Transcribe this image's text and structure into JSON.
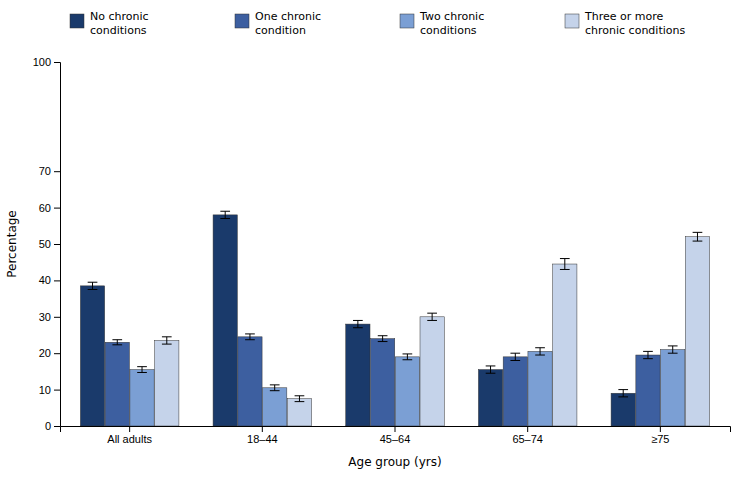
{
  "chart_data": {
    "type": "bar",
    "categories": [
      "All adults",
      "18–44",
      "45–64",
      "65–74",
      "≥75"
    ],
    "series": [
      {
        "name": "No chronic\nconditions",
        "color": "#1a3a6b",
        "values": [
          38.5,
          58.0,
          28.0,
          15.5,
          9.0
        ],
        "errors": [
          1.0,
          1.0,
          1.0,
          1.0,
          1.0
        ]
      },
      {
        "name": "One chronic\ncondition",
        "color": "#3d5fa0",
        "values": [
          23.0,
          24.5,
          24.0,
          19.0,
          19.5
        ],
        "errors": [
          0.7,
          0.8,
          0.8,
          1.0,
          1.0
        ]
      },
      {
        "name": "Two chronic\nconditions",
        "color": "#7b9fd4",
        "values": [
          15.5,
          10.5,
          19.0,
          20.5,
          21.0
        ],
        "errors": [
          0.8,
          0.8,
          0.8,
          1.0,
          1.0
        ]
      },
      {
        "name": "Three or more\nchronic conditions",
        "color": "#c5d3ea",
        "values": [
          23.5,
          7.5,
          30.0,
          44.5,
          52.0
        ],
        "errors": [
          1.0,
          0.8,
          1.0,
          1.5,
          1.2
        ]
      }
    ],
    "xlabel": "Age group (yrs)",
    "ylabel": "Percentage",
    "ylim": [
      0,
      100
    ],
    "yticks": [
      0,
      10,
      20,
      30,
      40,
      50,
      60,
      70,
      100
    ],
    "grid": false,
    "legend": "top"
  }
}
